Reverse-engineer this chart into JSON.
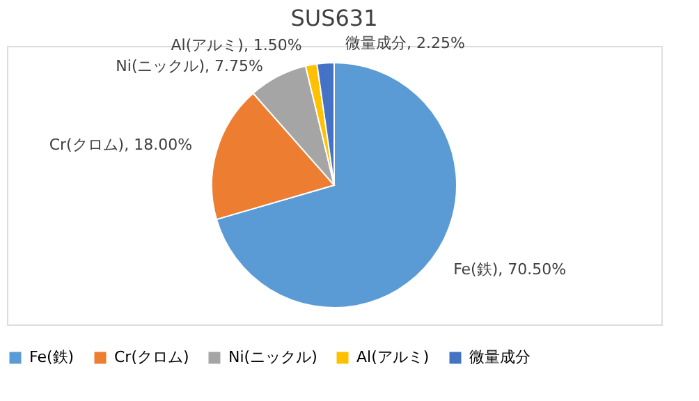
{
  "chart_data": {
    "type": "pie",
    "title": "SUS631",
    "categories": [
      "Fe(鉄)",
      "Cr(クロム)",
      "Ni(ニックル)",
      "Al(アルミ)",
      "微量成分"
    ],
    "values": [
      70.5,
      18.0,
      7.75,
      1.5,
      2.25
    ],
    "colors": [
      "#5b9bd5",
      "#ed7d31",
      "#a5a5a5",
      "#ffc000",
      "#4472c4"
    ],
    "value_labels": [
      "Fe(鉄), 70.50%",
      "Cr(クロム), 18.00%",
      "Ni(ニックル), 7.75%",
      "Al(アルミ), 1.50%",
      "微量成分, 2.25%"
    ],
    "legend": "bottom"
  }
}
